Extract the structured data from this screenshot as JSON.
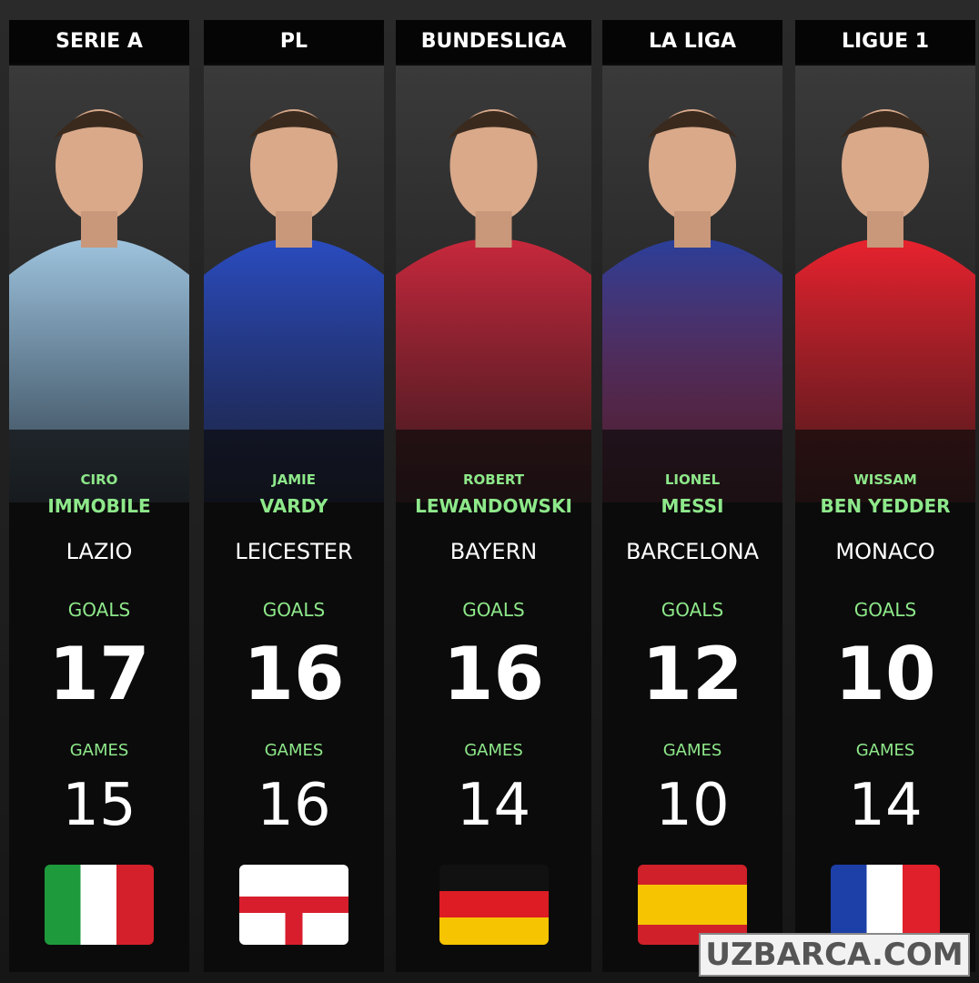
{
  "columns": [
    {
      "league": "SERIE A",
      "first_name": "CIRO",
      "last_name": "IMMOBILE",
      "club": "LAZIO",
      "goals_label": "GOALS",
      "goals": 17,
      "games_label": "GAMES",
      "games": 15
    },
    {
      "league": "PL",
      "first_name": "JAMIE",
      "last_name": "VARDY",
      "club": "LEICESTER",
      "goals_label": "GOALS",
      "goals": 16,
      "games_label": "GAMES",
      "games": 16
    },
    {
      "league": "BUNDESLIGA",
      "first_name": "ROBERT",
      "last_name": "LEWANDOWSKI",
      "club": "BAYERN",
      "goals_label": "GOALS",
      "goals": 16,
      "games_label": "GAMES",
      "games": 14
    },
    {
      "league": "LA LIGA",
      "first_name": "LIONEL",
      "last_name": "MESSI",
      "club": "BARCELONA",
      "goals_label": "GOALS",
      "goals": 12,
      "games_label": "GAMES",
      "games": 10
    },
    {
      "league": "LIGUE 1",
      "first_name": "WISSAM",
      "last_name": "BEN YEDDER",
      "club": "MONACO",
      "goals_label": "GOALS",
      "goals": 10,
      "games_label": "GAMES",
      "games": 14
    }
  ],
  "watermark": "UZBARCA.COM"
}
